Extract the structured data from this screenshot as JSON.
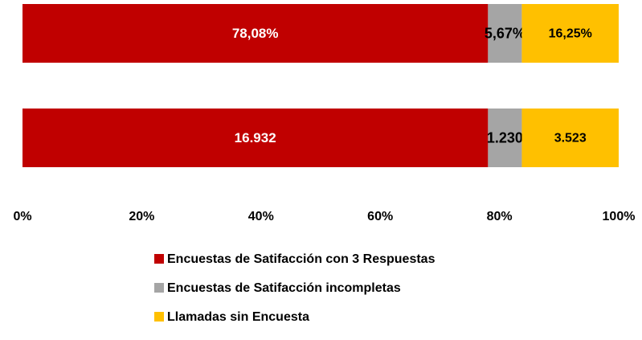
{
  "chart_data": {
    "type": "bar",
    "orientation": "horizontal",
    "stacking": "percent",
    "categories": [
      null,
      null
    ],
    "series": [
      {
        "name": "Encuestas de Satifacción con 3 Respuestas",
        "color": "#c00000",
        "label_color": "#ffffff",
        "values": [
          78.08,
          16932
        ],
        "value_labels": [
          "78,08%",
          "16.932"
        ]
      },
      {
        "name": "Encuestas de Satifacción incompletas",
        "color": "#a5a5a5",
        "label_color": "#000000",
        "values": [
          5.67,
          1230
        ],
        "value_labels": [
          "5,67%",
          "1.230"
        ]
      },
      {
        "name": "Llamadas sin Encuesta",
        "color": "#ffc000",
        "label_color": "#000000",
        "values": [
          16.25,
          3523
        ],
        "value_labels": [
          "16,25%",
          "3.523"
        ]
      }
    ],
    "xlim": [
      0,
      100
    ],
    "xticks": [
      {
        "value": 0,
        "label": "0%"
      },
      {
        "value": 20,
        "label": "20%"
      },
      {
        "value": 40,
        "label": "40%"
      },
      {
        "value": 60,
        "label": "60%"
      },
      {
        "value": 80,
        "label": "80%"
      },
      {
        "value": 100,
        "label": "100%"
      }
    ],
    "legend": "bottom"
  }
}
